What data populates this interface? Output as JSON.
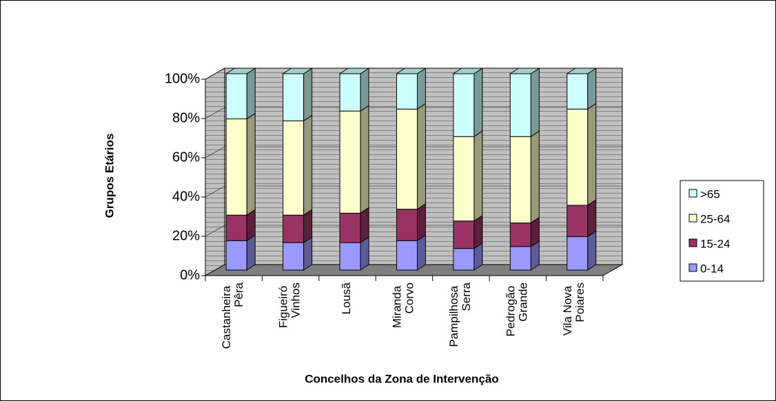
{
  "chart_data": {
    "type": "bar",
    "stacked": true,
    "x_label": "Concelhos da Zona de Intervenção",
    "y_label": "Grupos Etários",
    "categories": [
      "Castanheira Pêra",
      "Figueiró Vinhos",
      "Lousã",
      "Miranda Corvo",
      "Pampilhosa Serra",
      "Pedrogão Grande",
      "Vila Nova Poiares"
    ],
    "series": [
      {
        "name": "0-14",
        "color": "#9999ff",
        "values": [
          15,
          14,
          14,
          15,
          11,
          12,
          17
        ]
      },
      {
        "name": "15-24",
        "color": "#993366",
        "values": [
          13,
          14,
          15,
          16,
          14,
          12,
          16
        ]
      },
      {
        "name": "25-64",
        "color": "#ffffcc",
        "values": [
          49,
          48,
          52,
          51,
          43,
          44,
          49
        ]
      },
      {
        "name": ">65",
        "color": "#ccffff",
        "values": [
          23,
          24,
          19,
          18,
          32,
          32,
          18
        ]
      }
    ],
    "ylim": [
      0,
      100
    ],
    "yticks": [
      {
        "value": 0,
        "label": "0%"
      },
      {
        "value": 20,
        "label": "20%"
      },
      {
        "value": 40,
        "label": "40%"
      },
      {
        "value": 60,
        "label": "60%"
      },
      {
        "value": 80,
        "label": "80%"
      },
      {
        "value": 100,
        "label": "100%"
      }
    ],
    "legend": "right"
  }
}
